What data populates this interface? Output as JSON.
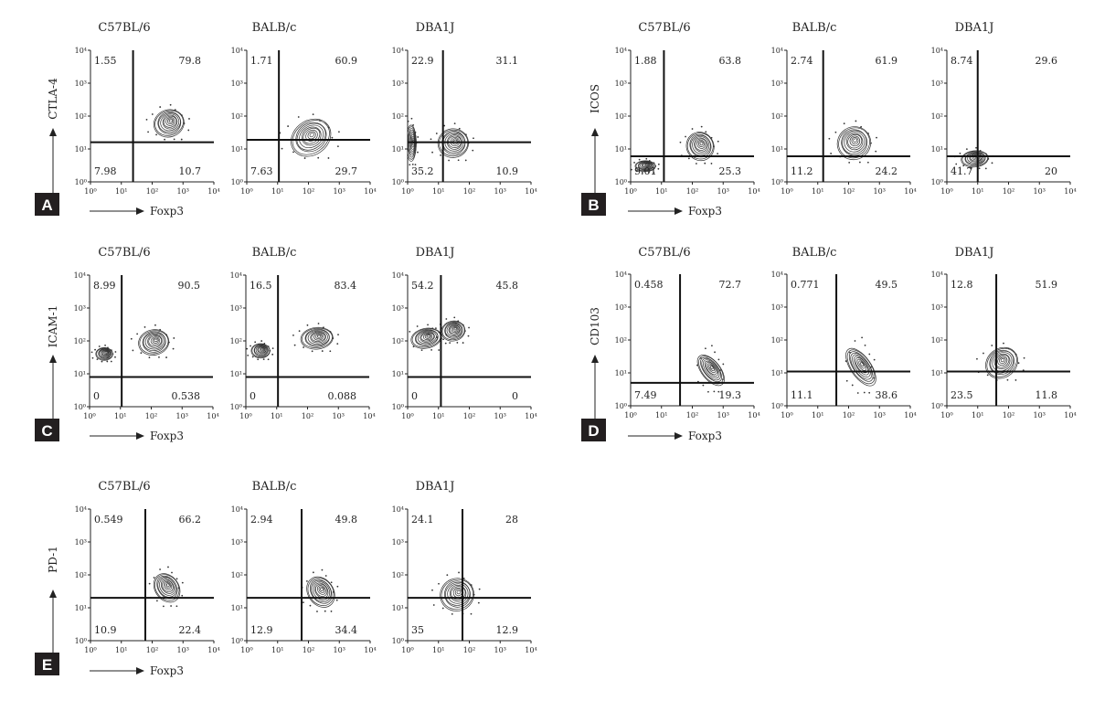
{
  "figure": {
    "x_axis_label": "Foxp3",
    "strains": [
      "C57BL/6",
      "BALB/c",
      "DBA1J"
    ],
    "x_ticks": [
      "10⁰",
      "10¹",
      "10²",
      "10³",
      "10⁴"
    ],
    "y_ticks": [
      "10⁰",
      "10¹",
      "10²",
      "10³",
      "10⁴"
    ]
  },
  "chart_data": [
    {
      "panel": "A",
      "type": "contour",
      "marker": "CTLA-4",
      "xlabel": "Foxp3",
      "ylabel": "CTLA-4",
      "xlim": [
        1,
        10000
      ],
      "ylim": [
        1,
        10000
      ],
      "scale": "log",
      "plots": [
        {
          "strain": "C57BL/6",
          "gate": {
            "x": 24,
            "y": 16
          },
          "quadrants": {
            "ul": "1.55",
            "ur": "79.8",
            "ll": "7.98",
            "lr": "10.7"
          },
          "populations": [
            {
              "x": 350,
              "y": 60,
              "sx": 0.9,
              "sy": 0.75,
              "r": 0.35
            }
          ]
        },
        {
          "strain": "BALB/c",
          "gate": {
            "x": 11,
            "y": 19
          },
          "quadrants": {
            "ul": "1.71",
            "ur": "60.9",
            "ll": "7.63",
            "lr": "29.7"
          },
          "populations": [
            {
              "x": 120,
              "y": 22,
              "sx": 1.25,
              "sy": 0.95,
              "r": 0.75
            }
          ]
        },
        {
          "strain": "DBA1J",
          "gate": {
            "x": 14,
            "y": 16
          },
          "quadrants": {
            "ul": "22.9",
            "ur": "31.1",
            "ll": "35.2",
            "lr": "10.9"
          },
          "populations": [
            {
              "x": 1.3,
              "y": 15,
              "sx": 0.3,
              "sy": 1.0,
              "r": 0
            },
            {
              "x": 30,
              "y": 15,
              "sx": 0.9,
              "sy": 0.8,
              "r": 0.1
            }
          ]
        }
      ]
    },
    {
      "panel": "B",
      "type": "contour",
      "marker": "ICOS",
      "xlabel": "Foxp3",
      "ylabel": "ICOS",
      "xlim": [
        1,
        10000
      ],
      "ylim": [
        1,
        10000
      ],
      "scale": "log",
      "plots": [
        {
          "strain": "C57BL/6",
          "gate": {
            "x": 12,
            "y": 6
          },
          "quadrants": {
            "ul": "1.88",
            "ur": "63.8",
            "ll": "9.01",
            "lr": "25.3"
          },
          "populations": [
            {
              "x": 180,
              "y": 12,
              "sx": 0.8,
              "sy": 0.8,
              "r": 0.6
            },
            {
              "x": 3,
              "y": 3,
              "sx": 0.6,
              "sy": 0.3,
              "r": 0
            }
          ]
        },
        {
          "strain": "BALB/c",
          "gate": {
            "x": 15,
            "y": 6
          },
          "quadrants": {
            "ul": "2.74",
            "ur": "61.9",
            "ll": "11.2",
            "lr": "24.2"
          },
          "populations": [
            {
              "x": 150,
              "y": 15,
              "sx": 1.0,
              "sy": 0.9,
              "r": 0.7
            }
          ]
        },
        {
          "strain": "DBA1J",
          "gate": {
            "x": 10,
            "y": 6
          },
          "quadrants": {
            "ul": "8.74",
            "ur": "29.6",
            "ll": "41.7",
            "lr": "20"
          },
          "populations": [
            {
              "x": 8,
              "y": 5,
              "sx": 0.8,
              "sy": 0.45,
              "r": 0.1
            }
          ]
        }
      ]
    },
    {
      "panel": "C",
      "type": "contour",
      "marker": "ICAM-1",
      "xlabel": "Foxp3",
      "ylabel": "ICAM-1",
      "xlim": [
        1,
        10000
      ],
      "ylim": [
        1,
        10000
      ],
      "scale": "log",
      "plots": [
        {
          "strain": "C57BL/6",
          "gate": {
            "x": 11,
            "y": 8
          },
          "quadrants": {
            "ul": "8.99",
            "ur": "90.5",
            "ll": "0",
            "lr": "0.538"
          },
          "populations": [
            {
              "x": 120,
              "y": 90,
              "sx": 0.9,
              "sy": 0.7,
              "r": 0.2
            },
            {
              "x": 3,
              "y": 40,
              "sx": 0.5,
              "sy": 0.35,
              "r": 0
            }
          ]
        },
        {
          "strain": "BALB/c",
          "gate": {
            "x": 11,
            "y": 8
          },
          "quadrants": {
            "ul": "16.5",
            "ur": "83.4",
            "ll": "0",
            "lr": "0.088"
          },
          "populations": [
            {
              "x": 200,
              "y": 120,
              "sx": 0.95,
              "sy": 0.6,
              "r": 0.1
            },
            {
              "x": 3,
              "y": 50,
              "sx": 0.55,
              "sy": 0.4,
              "r": 0
            }
          ]
        },
        {
          "strain": "DBA1J",
          "gate": {
            "x": 12,
            "y": 8
          },
          "quadrants": {
            "ul": "54.2",
            "ur": "45.8",
            "ll": "0",
            "lr": "0"
          },
          "populations": [
            {
              "x": 4,
              "y": 120,
              "sx": 0.9,
              "sy": 0.55,
              "r": 0.2
            },
            {
              "x": 30,
              "y": 200,
              "sx": 0.7,
              "sy": 0.55,
              "r": 0.2
            }
          ]
        }
      ]
    },
    {
      "panel": "D",
      "type": "contour",
      "marker": "CD103",
      "xlabel": "Foxp3",
      "ylabel": "CD103",
      "xlim": [
        1,
        10000
      ],
      "ylim": [
        1,
        10000
      ],
      "scale": "log",
      "plots": [
        {
          "strain": "C57BL/6",
          "gate": {
            "x": 40,
            "y": 5
          },
          "quadrants": {
            "ul": "0.458",
            "ur": "72.7",
            "ll": "7.49",
            "lr": "19.3"
          },
          "populations": [
            {
              "x": 400,
              "y": 12,
              "sx": 0.55,
              "sy": 1.0,
              "r": 0.8
            }
          ]
        },
        {
          "strain": "BALB/c",
          "gate": {
            "x": 40,
            "y": 11
          },
          "quadrants": {
            "ul": "0.771",
            "ur": "49.5",
            "ll": "11.1",
            "lr": "38.6"
          },
          "populations": [
            {
              "x": 250,
              "y": 15,
              "sx": 0.6,
              "sy": 1.2,
              "r": 0.7
            }
          ]
        },
        {
          "strain": "DBA1J",
          "gate": {
            "x": 40,
            "y": 11
          },
          "quadrants": {
            "ul": "12.8",
            "ur": "51.9",
            "ll": "23.5",
            "lr": "11.8"
          },
          "populations": [
            {
              "x": 60,
              "y": 20,
              "sx": 1.0,
              "sy": 0.8,
              "r": 0.8
            }
          ]
        }
      ]
    },
    {
      "panel": "E",
      "type": "contour",
      "marker": "PD-1",
      "xlabel": "Foxp3",
      "ylabel": "PD-1",
      "xlim": [
        1,
        10000
      ],
      "ylim": [
        1,
        10000
      ],
      "scale": "log",
      "plots": [
        {
          "strain": "C57BL/6",
          "gate": {
            "x": 60,
            "y": 20
          },
          "quadrants": {
            "ul": "0.549",
            "ur": "66.2",
            "ll": "10.9",
            "lr": "22.4"
          },
          "populations": [
            {
              "x": 300,
              "y": 40,
              "sx": 0.7,
              "sy": 0.85,
              "r": 0.7
            }
          ]
        },
        {
          "strain": "BALB/c",
          "gate": {
            "x": 60,
            "y": 20
          },
          "quadrants": {
            "ul": "2.94",
            "ur": "49.8",
            "ll": "12.9",
            "lr": "34.4"
          },
          "populations": [
            {
              "x": 250,
              "y": 30,
              "sx": 0.75,
              "sy": 0.9,
              "r": 0.7
            }
          ]
        },
        {
          "strain": "DBA1J",
          "gate": {
            "x": 60,
            "y": 20
          },
          "quadrants": {
            "ul": "24.1",
            "ur": "28",
            "ll": "35",
            "lr": "12.9"
          },
          "populations": [
            {
              "x": 40,
              "y": 25,
              "sx": 1.0,
              "sy": 0.9,
              "r": 0.4
            }
          ]
        }
      ]
    }
  ]
}
